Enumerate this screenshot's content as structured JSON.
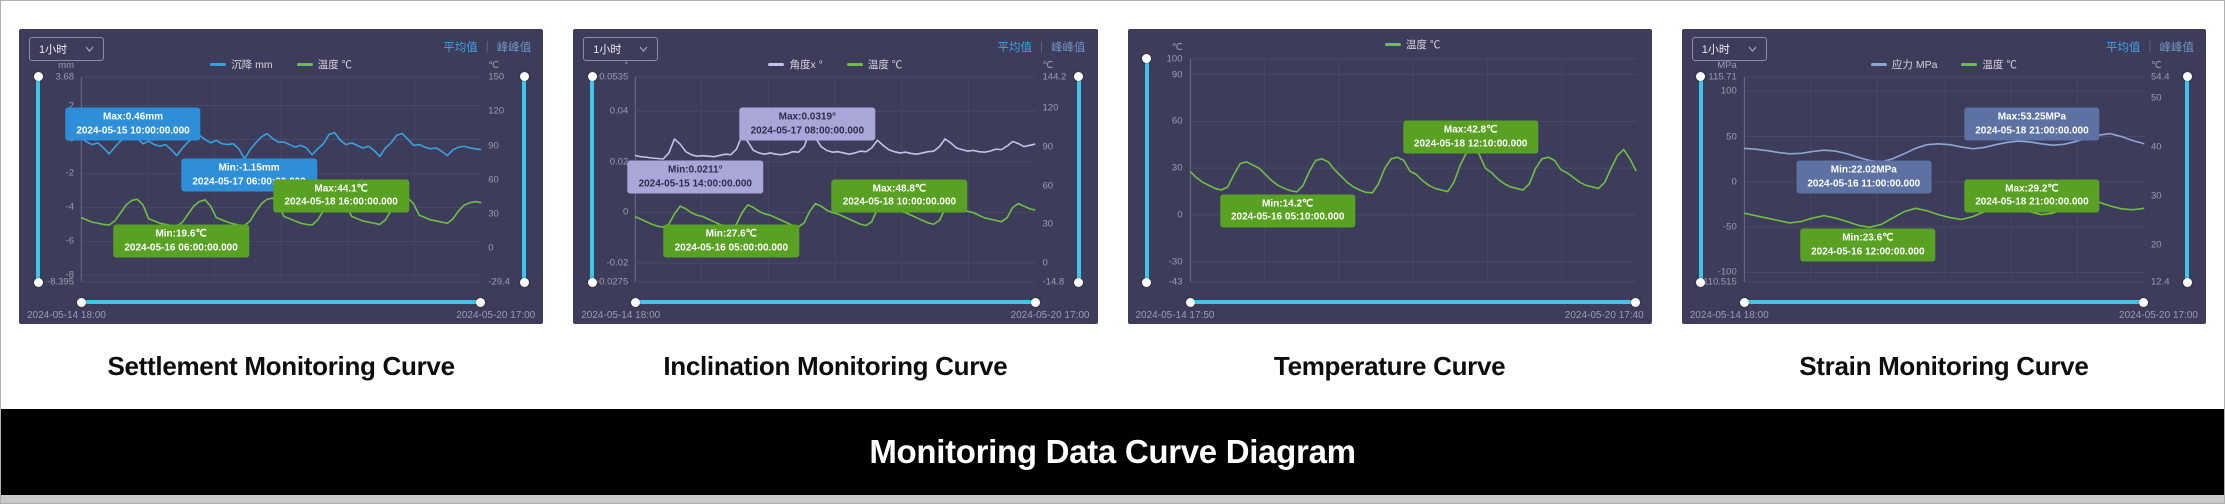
{
  "page": {
    "footer_title": "Monitoring Data Curve Diagram"
  },
  "theme": {
    "panel_bg": "#3d3d5b",
    "grid_line": "#4a4a68",
    "slider": "#3fc6ea",
    "active_link": "#41a0e6",
    "tooltip_blue": "#2e8ed8",
    "tooltip_green": "#58a122",
    "tooltip_lavender": "#a9a6d8",
    "tooltip_steel": "#5d72a2"
  },
  "panels": [
    {
      "title": "Settlement Monitoring Curve",
      "controls": {
        "interval_label": "1小时",
        "avg_label": "平均值",
        "peak_label": "峰峰值"
      },
      "chart_data": {
        "type": "line",
        "x_start": "2024-05-14 18:00",
        "x_end": "2024-05-20 17:00",
        "left_axis": {
          "unit": "mm",
          "min": -8.395,
          "max": 3.68,
          "ticks": [
            {
              "v": 3.68,
              "label": "3.68"
            },
            {
              "v": 2,
              "label": "2"
            },
            {
              "v": 0,
              "label": "0"
            },
            {
              "v": -2,
              "label": "-2"
            },
            {
              "v": -4,
              "label": "-4"
            },
            {
              "v": -6,
              "label": "-6"
            },
            {
              "v": -8,
              "label": "-8"
            },
            {
              "v": -8.395,
              "label": "-8.395"
            }
          ]
        },
        "right_axis": {
          "unit": "℃",
          "min": -29.4,
          "max": 150,
          "ticks": [
            {
              "v": 150,
              "label": "150"
            },
            {
              "v": 120,
              "label": "120"
            },
            {
              "v": 90,
              "label": "90"
            },
            {
              "v": 60,
              "label": "60"
            },
            {
              "v": 30,
              "label": "30"
            },
            {
              "v": 0,
              "label": "0"
            },
            {
              "v": -29.4,
              "label": "-29.4"
            }
          ]
        },
        "series": [
          {
            "name": "沉降 mm",
            "color": "#3aa0dd",
            "axis": "left",
            "values": [
              0.1,
              -0.15,
              -0.3,
              -0.2,
              -0.5,
              -0.85,
              -0.45,
              -0.1,
              0.2,
              0.46,
              0.05,
              -0.25,
              -0.1,
              -0.3,
              -0.4,
              -0.3,
              -0.6,
              -0.95,
              -0.5,
              -0.15,
              0.1,
              0.25,
              0,
              -0.2,
              -0.05,
              -0.25,
              -0.3,
              -0.25,
              -0.55,
              -1.15,
              -0.6,
              -0.2,
              0.15,
              0.35,
              0.05,
              -0.15,
              -0.15,
              -0.3,
              -0.45,
              -0.35,
              -0.5,
              -0.9,
              -0.55,
              -0.25,
              0.3,
              0.4,
              -0.05,
              -0.3,
              -0.2,
              -0.35,
              -0.5,
              -0.4,
              -0.65,
              -1.0,
              -0.5,
              -0.2,
              0.25,
              0.35,
              0,
              -0.35,
              -0.3,
              -0.45,
              -0.55,
              -0.5,
              -0.7,
              -0.95,
              -0.6,
              -0.45,
              -0.4,
              -0.5,
              -0.55,
              -0.6
            ]
          },
          {
            "name": "温度 ℃",
            "color": "#6fbf44",
            "axis": "right",
            "values": [
              27,
              25,
              23,
              22,
              21,
              20.5,
              24,
              31,
              38,
              42,
              43,
              38,
              26,
              24,
              22,
              21,
              20,
              19.6,
              23,
              30,
              37,
              41,
              42.5,
              37,
              27,
              25,
              23,
              21.5,
              20.5,
              20,
              24,
              32,
              39,
              43,
              44,
              38,
              28,
              26,
              24,
              22,
              21,
              20.5,
              25,
              33,
              40,
              43.5,
              44.1,
              39,
              28,
              26,
              24,
              23,
              22,
              21,
              25,
              33,
              40,
              43,
              44,
              39,
              29,
              27,
              25,
              24,
              23,
              22,
              26,
              33,
              38,
              40,
              41,
              40
            ]
          }
        ],
        "annotations": [
          {
            "line1": "Max:0.46mm",
            "line2": "2024-05-15 10:00:00.000",
            "style": "blue",
            "x": 13,
            "y": 23
          },
          {
            "line1": "Min:-1.15mm",
            "line2": "2024-05-17 06:00:00.000",
            "style": "blue",
            "x": 42,
            "y": 48
          },
          {
            "line1": "Max:44.1℃",
            "line2": "2024-05-18 16:00:00.000",
            "style": "green",
            "x": 65,
            "y": 58
          },
          {
            "line1": "Min:19.6℃",
            "line2": "2024-05-16 06:00:00.000",
            "style": "green",
            "x": 25,
            "y": 80
          }
        ]
      }
    },
    {
      "title": "Inclination Monitoring Curve",
      "controls": {
        "interval_label": "1小时",
        "avg_label": "平均值",
        "peak_label": "峰峰值"
      },
      "chart_data": {
        "type": "line",
        "x_start": "2024-05-14 18:00",
        "x_end": "2024-05-20 17:00",
        "left_axis": {
          "unit": "°",
          "min": -0.0275,
          "max": 0.0535,
          "ticks": [
            {
              "v": 0.0535,
              "label": "0.0535"
            },
            {
              "v": 0.04,
              "label": "0.04"
            },
            {
              "v": 0.02,
              "label": "0.02"
            },
            {
              "v": 0,
              "label": "0"
            },
            {
              "v": -0.02,
              "label": "-0.02"
            },
            {
              "v": -0.0275,
              "label": "-0.0275"
            }
          ]
        },
        "right_axis": {
          "unit": "℃",
          "min": -14.8,
          "max": 144.2,
          "ticks": [
            {
              "v": 144.2,
              "label": "144.2"
            },
            {
              "v": 120,
              "label": "120"
            },
            {
              "v": 90,
              "label": "90"
            },
            {
              "v": 60,
              "label": "60"
            },
            {
              "v": 30,
              "label": "30"
            },
            {
              "v": 0,
              "label": "0"
            },
            {
              "v": -14.8,
              "label": "-14.8"
            }
          ]
        },
        "series": [
          {
            "name": "角度x °",
            "color": "#c3c1ea",
            "axis": "left",
            "values": [
              0.0225,
              0.022,
              0.0218,
              0.0215,
              0.0213,
              0.0211,
              0.0235,
              0.029,
              0.027,
              0.024,
              0.0228,
              0.0222,
              0.0224,
              0.0222,
              0.022,
              0.0225,
              0.023,
              0.0228,
              0.025,
              0.0305,
              0.028,
              0.0245,
              0.0235,
              0.023,
              0.0235,
              0.023,
              0.0228,
              0.0232,
              0.024,
              0.0238,
              0.026,
              0.0319,
              0.0295,
              0.026,
              0.0245,
              0.0238,
              0.024,
              0.0235,
              0.023,
              0.0235,
              0.0242,
              0.024,
              0.0255,
              0.0285,
              0.0265,
              0.0248,
              0.024,
              0.0235,
              0.0238,
              0.0233,
              0.023,
              0.0235,
              0.024,
              0.0242,
              0.026,
              0.029,
              0.0275,
              0.0255,
              0.0248,
              0.0242,
              0.0245,
              0.024,
              0.0238,
              0.0242,
              0.025,
              0.0248,
              0.0262,
              0.028,
              0.0272,
              0.026,
              0.0265,
              0.027
            ]
          },
          {
            "name": "温度 ℃",
            "color": "#6fbf44",
            "axis": "right",
            "values": [
              36,
              34,
              32,
              30,
              28.5,
              27.8,
              30,
              38,
              44,
              42,
              39,
              37,
              36,
              34,
              32,
              30,
              28.5,
              27.6,
              30,
              39,
              45,
              43,
              40,
              38,
              37,
              35,
              33,
              31,
              29,
              28,
              31,
              40,
              46,
              44,
              41,
              39,
              38,
              36,
              34,
              32,
              30,
              29,
              32,
              42,
              48.8,
              46,
              43,
              40,
              39,
              37,
              35,
              33,
              31,
              30,
              33,
              42,
              47,
              45,
              42,
              40,
              39,
              37,
              35,
              34,
              33,
              32,
              35,
              43,
              46,
              44,
              42,
              41
            ]
          }
        ],
        "annotations": [
          {
            "line1": "Max:0.0319°",
            "line2": "2024-05-17 08:00:00.000",
            "style": "lav",
            "x": 43,
            "y": 23
          },
          {
            "line1": "Min:0.0211°",
            "line2": "2024-05-15 14:00:00.000",
            "style": "lav",
            "x": 15,
            "y": 49
          },
          {
            "line1": "Max:48.8℃",
            "line2": "2024-05-18 10:00:00.000",
            "style": "green",
            "x": 66,
            "y": 58
          },
          {
            "line1": "Min:27.6℃",
            "line2": "2024-05-16 05:00:00.000",
            "style": "green",
            "x": 24,
            "y": 80
          }
        ]
      }
    },
    {
      "title": "Temperature Curve",
      "controls": {},
      "chart_data": {
        "type": "line",
        "x_start": "2024-05-14 17:50",
        "x_end": "2024-05-20 17:40",
        "left_axis": {
          "unit": "℃",
          "min": -43,
          "max": 100,
          "ticks": [
            {
              "v": 100,
              "label": "100"
            },
            {
              "v": 90,
              "label": "90"
            },
            {
              "v": 60,
              "label": "60"
            },
            {
              "v": 30,
              "label": "30"
            },
            {
              "v": 0,
              "label": "0"
            },
            {
              "v": -30,
              "label": "-30"
            },
            {
              "v": -43,
              "label": "-43"
            }
          ]
        },
        "right_axis": null,
        "series": [
          {
            "name": "温度 ℃",
            "color": "#6fbf44",
            "axis": "left",
            "values": [
              28,
              24,
              21,
              19,
              17,
              16,
              18,
              26,
              33,
              34,
              32,
              30,
              26,
              22,
              19,
              17,
              15.5,
              14.8,
              19,
              28,
              35,
              36,
              34,
              29,
              25,
              21,
              18,
              16,
              14.5,
              14.2,
              20,
              30,
              36,
              37,
              35,
              28,
              26,
              22,
              19,
              17,
              16,
              15,
              21,
              32,
              40,
              42.8,
              39,
              30,
              27,
              23,
              20,
              18,
              17,
              16,
              20,
              30,
              36,
              37,
              35,
              29,
              27,
              24,
              21,
              19,
              18,
              17,
              21,
              30,
              38,
              42,
              36,
              28
            ]
          }
        ],
        "annotations": [
          {
            "line1": "Max:42.8℃",
            "line2": "2024-05-18 12:10:00.000",
            "style": "green",
            "x": 63,
            "y": 35
          },
          {
            "line1": "Min:14.2℃",
            "line2": "2024-05-16 05:10:00.000",
            "style": "green",
            "x": 22,
            "y": 68
          }
        ]
      }
    },
    {
      "title": "Strain Monitoring Curve",
      "controls": {
        "interval_label": "1小时",
        "avg_label": "平均值",
        "peak_label": "峰峰值"
      },
      "chart_data": {
        "type": "line",
        "x_start": "2024-05-14 18:00",
        "x_end": "2024-05-20 17:00",
        "left_axis": {
          "unit": "MPa",
          "min": -110.515,
          "max": 115.71,
          "ticks": [
            {
              "v": 115.71,
              "label": "115.71"
            },
            {
              "v": 100,
              "label": "100"
            },
            {
              "v": 50,
              "label": "50"
            },
            {
              "v": 0,
              "label": "0"
            },
            {
              "v": -50,
              "label": "-50"
            },
            {
              "v": -100,
              "label": "-100"
            },
            {
              "v": -110.515,
              "label": "-110.515"
            }
          ]
        },
        "right_axis": {
          "unit": "℃",
          "min": 12.4,
          "max": 54.4,
          "ticks": [
            {
              "v": 54.4,
              "label": "54.4"
            },
            {
              "v": 50,
              "label": "50"
            },
            {
              "v": 40,
              "label": "40"
            },
            {
              "v": 30,
              "label": "30"
            },
            {
              "v": 20,
              "label": "20"
            },
            {
              "v": 12.4,
              "label": "12.4"
            }
          ]
        },
        "series": [
          {
            "name": "应力 MPa",
            "color": "#8ca6d5",
            "axis": "left",
            "values": [
              37,
              36,
              34.5,
              32.5,
              31,
              31.5,
              33.5,
              35,
              34,
              31,
              27,
              23.5,
              22.02,
              25.5,
              31,
              37,
              41,
              42,
              41,
              38.5,
              36.5,
              38,
              41,
              43.5,
              45,
              44,
              42,
              40.5,
              41.5,
              44.5,
              48,
              51.5,
              53.25,
              50,
              45.5,
              42
            ]
          },
          {
            "name": "温度 ℃",
            "color": "#6fbf44",
            "axis": "right",
            "values": [
              26.5,
              26,
              25.5,
              25,
              24.5,
              24.8,
              25.5,
              26,
              25.5,
              24.8,
              24,
              23.6,
              24.2,
              25.5,
              26.8,
              27.5,
              27,
              26.2,
              25.6,
              25.2,
              25.8,
              26.8,
              27.8,
              28.2,
              27.6,
              26.8,
              26.2,
              26.5,
              27.4,
              28.4,
              29.2,
              28.8,
              28,
              27.4,
              27.2,
              27.5
            ]
          }
        ],
        "annotations": [
          {
            "line1": "Max:53.25MPa",
            "line2": "2024-05-18 21:00:00.000",
            "style": "steel",
            "x": 72,
            "y": 23
          },
          {
            "line1": "Min:22.02MPa",
            "line2": "2024-05-16 11:00:00.000",
            "style": "steel",
            "x": 30,
            "y": 49
          },
          {
            "line1": "Max:29.2℃",
            "line2": "2024-05-18 21:00:00.000",
            "style": "green",
            "x": 72,
            "y": 58
          },
          {
            "line1": "Min:23.6℃",
            "line2": "2024-05-16 12:00:00.000",
            "style": "green",
            "x": 31,
            "y": 82
          }
        ]
      }
    }
  ]
}
